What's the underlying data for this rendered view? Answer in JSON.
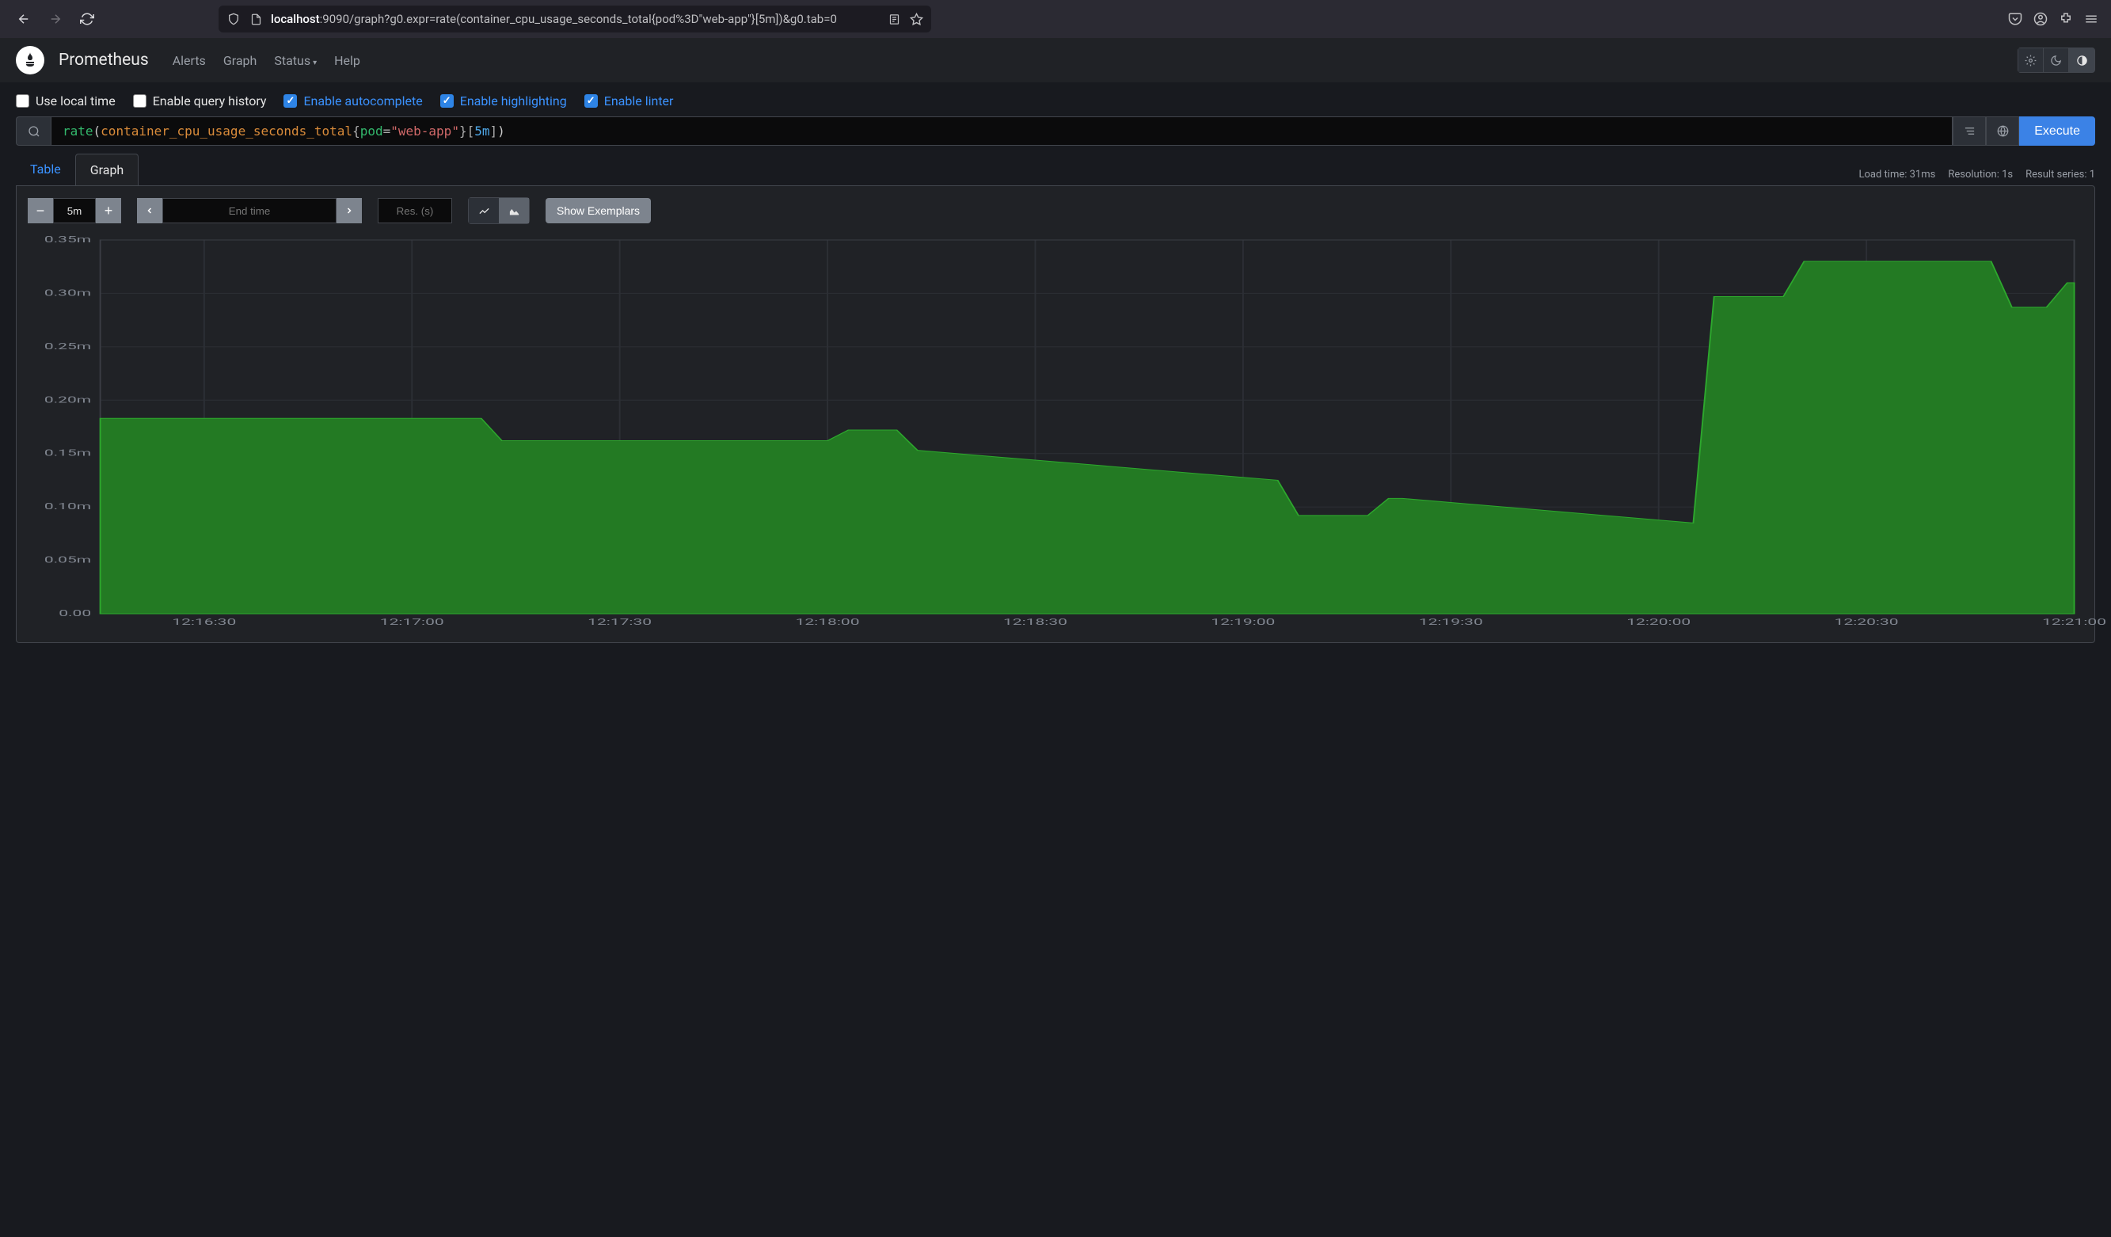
{
  "browser": {
    "url_prefix": "localhost",
    "url_rest": ":9090/graph?g0.expr=rate(container_cpu_usage_seconds_total{pod%3D\"web-app\"}[5m])&g0.tab=0"
  },
  "nav": {
    "brand": "Prometheus",
    "links": [
      "Alerts",
      "Graph",
      "Status",
      "Help"
    ],
    "status_has_dropdown": true
  },
  "options": [
    {
      "label": "Use local time",
      "checked": false,
      "blue": false
    },
    {
      "label": "Enable query history",
      "checked": false,
      "blue": false
    },
    {
      "label": "Enable autocomplete",
      "checked": true,
      "blue": true
    },
    {
      "label": "Enable highlighting",
      "checked": true,
      "blue": true
    },
    {
      "label": "Enable linter",
      "checked": true,
      "blue": true
    }
  ],
  "query": {
    "func": "rate",
    "metric": "container_cpu_usage_seconds_total",
    "label_key": "pod",
    "label_val": "\"web-app\"",
    "duration": "5m",
    "execute_label": "Execute"
  },
  "tabs": {
    "inactive": "Table",
    "active": "Graph"
  },
  "stats": {
    "load_time": "Load time: 31ms",
    "resolution": "Resolution: 1s",
    "result_series": "Result series: 1"
  },
  "controls": {
    "range": "5m",
    "end_time_placeholder": "End time",
    "resolution_placeholder": "Res. (s)",
    "exemplars_label": "Show Exemplars"
  },
  "chart": {
    "type": "area",
    "fill_color": "#237a23",
    "stroke_color": "#2da82d",
    "background_color": "#202226",
    "grid_color": "#2c2f35",
    "border_color": "#3a3d44",
    "axis_label_color": "#808690",
    "ylim": [
      0,
      0.35
    ],
    "ytick_step": 0.05,
    "ytick_labels": [
      "0.00",
      "0.05m",
      "0.10m",
      "0.15m",
      "0.20m",
      "0.25m",
      "0.30m",
      "0.35m"
    ],
    "xtick_labels": [
      "12:16:30",
      "12:17:00",
      "12:17:30",
      "12:18:00",
      "12:18:30",
      "12:19:00",
      "12:19:30",
      "12:20:00",
      "12:20:30",
      "12:21:00"
    ],
    "xlim": [
      0,
      285
    ],
    "data": [
      [
        0,
        0.183
      ],
      [
        55,
        0.183
      ],
      [
        58,
        0.162
      ],
      [
        105,
        0.162
      ],
      [
        108,
        0.172
      ],
      [
        115,
        0.172
      ],
      [
        118,
        0.153
      ],
      [
        170,
        0.125
      ],
      [
        173,
        0.092
      ],
      [
        183,
        0.092
      ],
      [
        186,
        0.108
      ],
      [
        188,
        0.108
      ],
      [
        230,
        0.085
      ],
      [
        233,
        0.297
      ],
      [
        243,
        0.297
      ],
      [
        246,
        0.33
      ],
      [
        273,
        0.33
      ],
      [
        276,
        0.287
      ],
      [
        281,
        0.287
      ],
      [
        284,
        0.31
      ],
      [
        285,
        0.31
      ]
    ]
  }
}
